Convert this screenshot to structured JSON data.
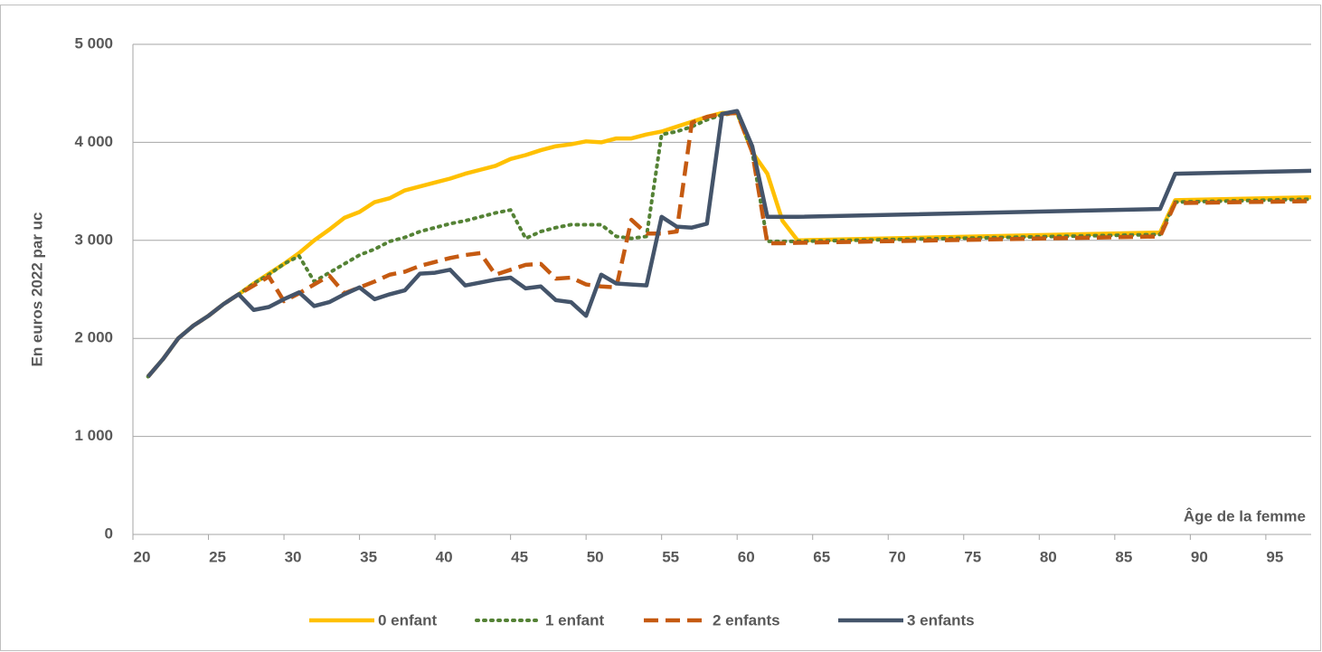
{
  "chart_data": {
    "type": "line",
    "y_label": "En euros 2022 par uc",
    "x_label": "Âge de la femme",
    "x": [
      21,
      22,
      23,
      24,
      25,
      26,
      27,
      28,
      29,
      30,
      31,
      32,
      33,
      34,
      35,
      36,
      37,
      38,
      39,
      40,
      41,
      42,
      43,
      44,
      45,
      46,
      47,
      48,
      49,
      50,
      51,
      52,
      53,
      54,
      55,
      56,
      57,
      58,
      59,
      60,
      61,
      62,
      63,
      64,
      88,
      89,
      98
    ],
    "series": [
      {
        "name": "0 enfant",
        "color": "#ffc000",
        "style": "solid",
        "values": [
          1610,
          1790,
          2000,
          2130,
          2230,
          2350,
          2450,
          2560,
          2660,
          2760,
          2870,
          3000,
          3110,
          3230,
          3290,
          3390,
          3430,
          3510,
          3550,
          3590,
          3630,
          3680,
          3720,
          3760,
          3830,
          3870,
          3920,
          3960,
          3980,
          4010,
          4000,
          4040,
          4040,
          4080,
          4110,
          4160,
          4210,
          4260,
          4300,
          4300,
          3900,
          3680,
          3200,
          3000,
          3080,
          3410,
          3440
        ]
      },
      {
        "name": "1 enfant",
        "color": "#548235",
        "style": "dotted",
        "values": [
          1610,
          1790,
          2000,
          2130,
          2230,
          2350,
          2450,
          2560,
          2650,
          2760,
          2840,
          2580,
          2670,
          2760,
          2850,
          2910,
          2990,
          3030,
          3090,
          3130,
          3170,
          3200,
          3240,
          3280,
          3310,
          3020,
          3090,
          3130,
          3160,
          3160,
          3160,
          3040,
          3020,
          3040,
          4080,
          4110,
          4160,
          4230,
          4280,
          4300,
          3900,
          2990,
          2990,
          2990,
          3060,
          3390,
          3420
        ]
      },
      {
        "name": "2 enfants",
        "color": "#c55a11",
        "style": "dashed",
        "values": [
          1610,
          1790,
          2000,
          2130,
          2230,
          2350,
          2450,
          2540,
          2630,
          2380,
          2460,
          2550,
          2640,
          2460,
          2520,
          2580,
          2650,
          2680,
          2740,
          2780,
          2820,
          2850,
          2870,
          2650,
          2700,
          2750,
          2760,
          2610,
          2620,
          2550,
          2530,
          2520,
          3210,
          3070,
          3070,
          3090,
          4200,
          4260,
          4290,
          4300,
          3900,
          2970,
          2970,
          2975,
          3040,
          3380,
          3400
        ]
      },
      {
        "name": "3 enfants",
        "color": "#44546a",
        "style": "solid",
        "values": [
          1610,
          1790,
          2000,
          2130,
          2230,
          2350,
          2450,
          2290,
          2320,
          2400,
          2470,
          2330,
          2370,
          2450,
          2520,
          2400,
          2450,
          2490,
          2660,
          2670,
          2700,
          2540,
          2570,
          2600,
          2620,
          2510,
          2530,
          2390,
          2370,
          2230,
          2650,
          2560,
          2550,
          2540,
          3240,
          3140,
          3130,
          3170,
          4290,
          4320,
          3960,
          3240,
          3240,
          3240,
          3320,
          3680,
          3710
        ]
      }
    ],
    "xlim": [
      20,
      98
    ],
    "xticks": [
      20,
      25,
      30,
      35,
      40,
      45,
      50,
      55,
      60,
      65,
      70,
      75,
      80,
      85,
      90,
      95
    ],
    "ylim": [
      0,
      5000
    ],
    "yticks": [
      0,
      {
        "value": 1000,
        "label": "1 000"
      },
      {
        "value": 2000,
        "label": "2 000"
      },
      {
        "value": 3000,
        "label": "3 000"
      },
      {
        "value": 4000,
        "label": "4 000"
      },
      {
        "value": 5000,
        "label": "5 000"
      }
    ],
    "grid": true,
    "legend": "bottom"
  }
}
